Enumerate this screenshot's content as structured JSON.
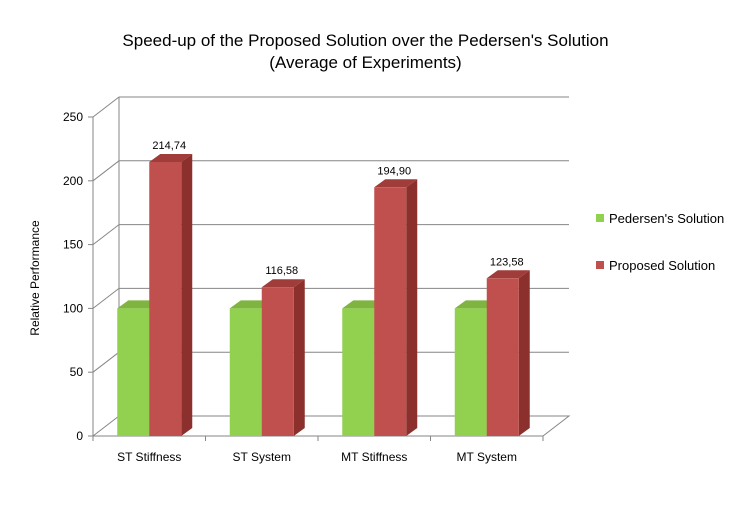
{
  "chart_data": {
    "type": "bar",
    "title_line1": "Speed-up of the Proposed Solution over the Pedersen's Solution",
    "title_line2": "(Average of Experiments)",
    "xlabel": "",
    "ylabel": "Relative Performance",
    "categories": [
      "ST Stiffness",
      "ST System",
      "MT Stiffness",
      "MT System"
    ],
    "series": [
      {
        "name": "Pedersen's Solution",
        "values": [
          100,
          100,
          100,
          100
        ],
        "color": "#92d050"
      },
      {
        "name": "Proposed Solution",
        "values": [
          214.74,
          116.58,
          194.9,
          123.58
        ],
        "color": "#c0504d",
        "data_labels": [
          "214,74",
          "116,58",
          "194,90",
          "123,58"
        ]
      }
    ],
    "ylim": [
      0,
      250
    ],
    "yticks": [
      "0",
      "50",
      "100",
      "150",
      "200",
      "250"
    ],
    "grid": true,
    "legend_position": "right"
  }
}
